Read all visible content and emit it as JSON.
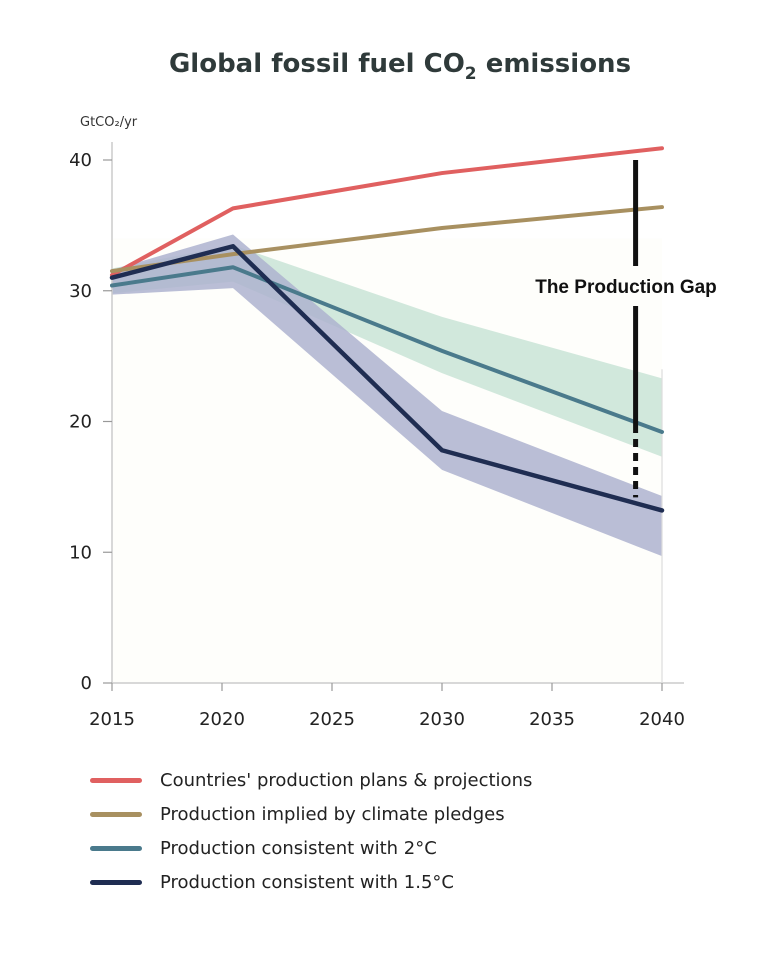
{
  "chart_data": {
    "type": "line",
    "title": "Global fossil fuel CO",
    "title_subscript": "2",
    "title_suffix": " emissions",
    "ylabel": "GtCO₂/yr",
    "ylim": [
      0,
      40
    ],
    "xlim": [
      2015,
      2040
    ],
    "yticks": [
      0,
      10,
      20,
      30,
      40
    ],
    "xticks": [
      2015,
      2020,
      2025,
      2030,
      2035,
      2040
    ],
    "grid": false,
    "annotation": "The Production Gap",
    "gap_marker": {
      "x": 2038.8,
      "y_top": 40.0,
      "y_bottom": 14.2
    },
    "series": [
      {
        "name": "Countries' production plans & projections",
        "color": "#e06060",
        "x": [
          2015,
          2020.5,
          2030,
          2040
        ],
        "y": [
          31.2,
          36.3,
          39.0,
          40.9
        ]
      },
      {
        "name": "Production implied by climate pledges",
        "color": "#a89060",
        "x": [
          2015,
          2020.5,
          2030,
          2040
        ],
        "y": [
          31.5,
          32.8,
          34.8,
          36.4
        ]
      },
      {
        "name": "Production consistent with 2°C",
        "color": "#4a7a8c",
        "x": [
          2015,
          2020.5,
          2030,
          2040
        ],
        "y": [
          30.4,
          31.8,
          25.4,
          19.2
        ]
      },
      {
        "name": "Production consistent with 1.5°C",
        "color": "#1f2d52",
        "x": [
          2015,
          2020.5,
          2030,
          2040
        ],
        "y": [
          31.0,
          33.4,
          17.8,
          13.2
        ]
      }
    ],
    "bands": [
      {
        "color": "#cfe7da",
        "x": [
          2015,
          2020.5,
          2030,
          2040
        ],
        "upper": [
          31.7,
          33.5,
          28.0,
          23.3
        ],
        "lower": [
          29.8,
          30.7,
          23.7,
          17.3
        ]
      },
      {
        "color": "#aeb3cf",
        "x": [
          2015,
          2020.5,
          2030,
          2040
        ],
        "upper": [
          31.6,
          34.3,
          20.8,
          14.3
        ],
        "lower": [
          29.7,
          30.2,
          16.3,
          9.7
        ]
      }
    ]
  }
}
